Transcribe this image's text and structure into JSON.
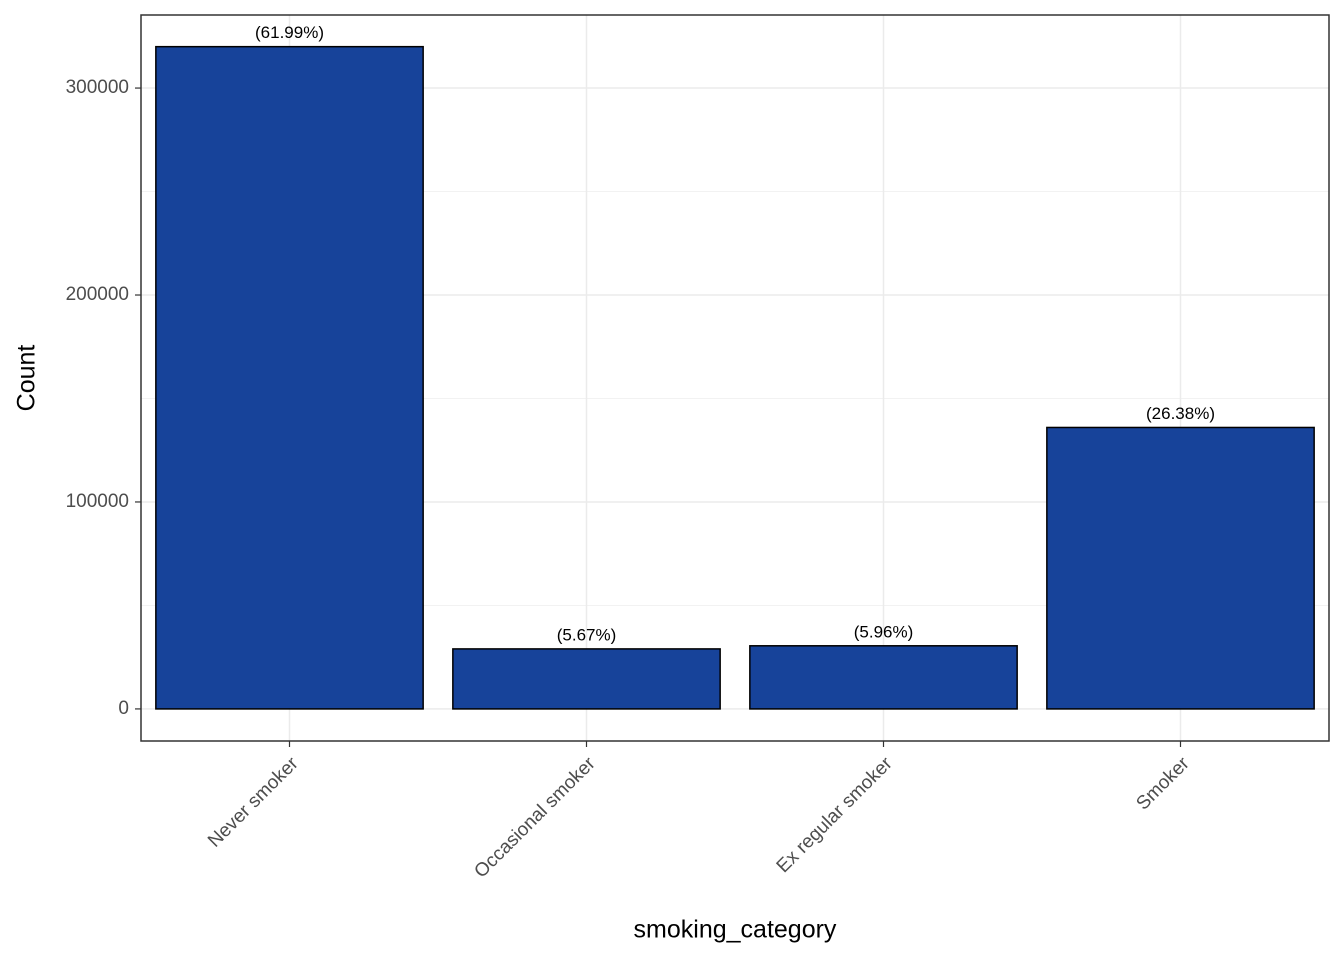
{
  "chart_data": {
    "type": "bar",
    "x_label": "smoking_category",
    "y_label": "Count",
    "categories": [
      "Never smoker",
      "Occasional smoker",
      "Ex regular smoker",
      "Smoker"
    ],
    "values": [
      320000,
      29000,
      30500,
      136000
    ],
    "labels": [
      "(61.99%)",
      "(5.67%)",
      "(5.96%)",
      "(26.38%)"
    ],
    "color": "#17439a",
    "ylim": [
      -15500,
      335300
    ],
    "yticks": [
      0,
      100000,
      200000,
      300000
    ],
    "grid": true
  }
}
